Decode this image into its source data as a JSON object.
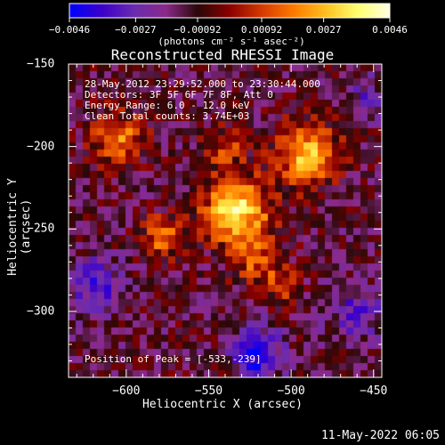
{
  "chart_data": {
    "type": "heatmap",
    "title": "Reconstructed RHESSI Image",
    "xlabel": "Heliocentric X (arcsec)",
    "ylabel": "Heliocentric Y (arcsec)",
    "xlim": [
      -635,
      -445
    ],
    "ylim": [
      -340,
      -150
    ],
    "x_ticks": [
      -600,
      -550,
      -500,
      -450
    ],
    "y_ticks": [
      -150,
      -200,
      -250,
      -300
    ],
    "x_tick_labels": [
      "−600",
      "−550",
      "−500",
      "−450"
    ],
    "y_tick_labels": [
      "−150",
      "−200",
      "−250",
      "−300"
    ],
    "colorbar": {
      "min": -0.0046,
      "max": 0.0046,
      "ticks": [
        -0.0046,
        -0.0027,
        -0.00092,
        0.00092,
        0.0027,
        0.0046
      ],
      "tick_labels": [
        "−0.0046",
        "−0.0027",
        "−0.00092",
        "0.00092",
        "0.0027",
        "0.0046"
      ],
      "units_label": "(photons cm⁻² s⁻¹ asec⁻²)",
      "colormap": [
        "#0000ff",
        "#3c00c8",
        "#6a2bb0",
        "#8b2a8a",
        "#2a0808",
        "#8b0000",
        "#d43a00",
        "#ff7a00",
        "#ffbf1f",
        "#ffff70",
        "#ffffe0"
      ]
    },
    "sources": [
      {
        "x": -533,
        "y": -239,
        "amplitude": 0.0046,
        "sigma": 14
      },
      {
        "x": -490,
        "y": -205,
        "amplitude": 0.0038,
        "sigma": 13
      },
      {
        "x": -605,
        "y": -195,
        "amplitude": 0.003,
        "sigma": 11
      },
      {
        "x": -578,
        "y": -255,
        "amplitude": 0.0026,
        "sigma": 9
      },
      {
        "x": -520,
        "y": -270,
        "amplitude": 0.0022,
        "sigma": 10
      },
      {
        "x": -505,
        "y": -285,
        "amplitude": 0.0016,
        "sigma": 7
      },
      {
        "x": -540,
        "y": -200,
        "amplitude": 0.0018,
        "sigma": 9
      }
    ],
    "negative_regions": [
      {
        "x": -520,
        "y": -325,
        "amplitude": -0.0035,
        "sigma": 10
      },
      {
        "x": -620,
        "y": -285,
        "amplitude": -0.0022,
        "sigma": 12
      },
      {
        "x": -460,
        "y": -300,
        "amplitude": -0.0018,
        "sigma": 12
      },
      {
        "x": -455,
        "y": -170,
        "amplitude": -0.0014,
        "sigma": 9
      }
    ]
  },
  "annotations": {
    "time_range": "28-May-2012 23:29:52.000 to 23:30:44.000",
    "detectors": "Detectors: 3F 5F 6F 7F 8F, Att 0",
    "energy_range": "Energy Range: 6.0 - 12.0 keV",
    "method_counts": "Clean    Total counts: 3.74E+03",
    "peak_position": "Position of Peak = [-533,-239]"
  },
  "footer": {
    "date": "11-May-2022 06:05"
  }
}
